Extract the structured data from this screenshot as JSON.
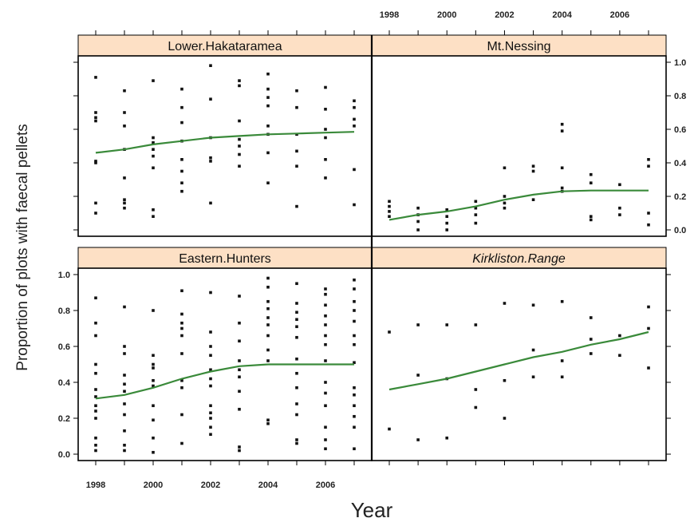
{
  "chart_data": {
    "type": "scatter",
    "xlabel": "Year",
    "ylabel": "Proportion of plots with faecal pellets",
    "x_ticks": [
      1998,
      2000,
      2002,
      2004,
      2006
    ],
    "y_ticks": [
      "0.0",
      "0.2",
      "0.4",
      "0.6",
      "0.8",
      "1.0"
    ],
    "xlim": [
      1998,
      2007
    ],
    "ylim": [
      0,
      1
    ],
    "colors": {
      "smooth": "#3a8a3a",
      "points": "#111111",
      "strip": "#fde0c5",
      "frame": "#000000"
    },
    "panels": [
      {
        "name": "Lower.Hakataramea",
        "italic": false,
        "points": [
          [
            1998,
            0.91
          ],
          [
            1998,
            0.7
          ],
          [
            1998,
            0.67
          ],
          [
            1998,
            0.65
          ],
          [
            1998,
            0.41
          ],
          [
            1998,
            0.4
          ],
          [
            1998,
            0.16
          ],
          [
            1998,
            0.1
          ],
          [
            1999,
            0.83
          ],
          [
            1999,
            0.7
          ],
          [
            1999,
            0.62
          ],
          [
            1999,
            0.48
          ],
          [
            1999,
            0.31
          ],
          [
            1999,
            0.18
          ],
          [
            1999,
            0.16
          ],
          [
            1999,
            0.13
          ],
          [
            2000,
            0.89
          ],
          [
            2000,
            0.55
          ],
          [
            2000,
            0.52
          ],
          [
            2000,
            0.48
          ],
          [
            2000,
            0.44
          ],
          [
            2000,
            0.37
          ],
          [
            2000,
            0.12
          ],
          [
            2000,
            0.08
          ],
          [
            2001,
            0.84
          ],
          [
            2001,
            0.73
          ],
          [
            2001,
            0.64
          ],
          [
            2001,
            0.53
          ],
          [
            2001,
            0.42
          ],
          [
            2001,
            0.35
          ],
          [
            2001,
            0.28
          ],
          [
            2001,
            0.23
          ],
          [
            2002,
            0.98
          ],
          [
            2002,
            0.78
          ],
          [
            2002,
            0.55
          ],
          [
            2002,
            0.43
          ],
          [
            2002,
            0.41
          ],
          [
            2002,
            0.16
          ],
          [
            2003,
            0.89
          ],
          [
            2003,
            0.86
          ],
          [
            2003,
            0.65
          ],
          [
            2003,
            0.54
          ],
          [
            2003,
            0.5
          ],
          [
            2003,
            0.45
          ],
          [
            2003,
            0.38
          ],
          [
            2004,
            0.93
          ],
          [
            2004,
            0.84
          ],
          [
            2004,
            0.79
          ],
          [
            2004,
            0.74
          ],
          [
            2004,
            0.62
          ],
          [
            2004,
            0.57
          ],
          [
            2004,
            0.46
          ],
          [
            2004,
            0.28
          ],
          [
            2005,
            0.83
          ],
          [
            2005,
            0.73
          ],
          [
            2005,
            0.57
          ],
          [
            2005,
            0.47
          ],
          [
            2005,
            0.38
          ],
          [
            2005,
            0.14
          ],
          [
            2006,
            0.85
          ],
          [
            2006,
            0.72
          ],
          [
            2006,
            0.6
          ],
          [
            2006,
            0.55
          ],
          [
            2006,
            0.42
          ],
          [
            2006,
            0.31
          ],
          [
            2007,
            0.77
          ],
          [
            2007,
            0.73
          ],
          [
            2007,
            0.66
          ],
          [
            2007,
            0.62
          ],
          [
            2007,
            0.36
          ],
          [
            2007,
            0.15
          ]
        ],
        "smooth": [
          [
            1998,
            0.46
          ],
          [
            1999,
            0.48
          ],
          [
            2000,
            0.51
          ],
          [
            2001,
            0.53
          ],
          [
            2002,
            0.55
          ],
          [
            2003,
            0.56
          ],
          [
            2004,
            0.57
          ],
          [
            2005,
            0.575
          ],
          [
            2006,
            0.58
          ],
          [
            2007,
            0.585
          ]
        ]
      },
      {
        "name": "Mt.Nessing",
        "italic": false,
        "points": [
          [
            1998,
            0.17
          ],
          [
            1998,
            0.14
          ],
          [
            1998,
            0.11
          ],
          [
            1998,
            0.08
          ],
          [
            1999,
            0.13
          ],
          [
            1999,
            0.09
          ],
          [
            1999,
            0.05
          ],
          [
            1999,
            0.0
          ],
          [
            2000,
            0.12
          ],
          [
            2000,
            0.08
          ],
          [
            2000,
            0.04
          ],
          [
            2000,
            0.0
          ],
          [
            2001,
            0.17
          ],
          [
            2001,
            0.13
          ],
          [
            2001,
            0.09
          ],
          [
            2001,
            0.04
          ],
          [
            2002,
            0.37
          ],
          [
            2002,
            0.2
          ],
          [
            2002,
            0.16
          ],
          [
            2002,
            0.13
          ],
          [
            2003,
            0.38
          ],
          [
            2003,
            0.35
          ],
          [
            2003,
            0.18
          ],
          [
            2004,
            0.63
          ],
          [
            2004,
            0.59
          ],
          [
            2004,
            0.37
          ],
          [
            2004,
            0.25
          ],
          [
            2004,
            0.23
          ],
          [
            2005,
            0.33
          ],
          [
            2005,
            0.28
          ],
          [
            2005,
            0.08
          ],
          [
            2005,
            0.06
          ],
          [
            2006,
            0.27
          ],
          [
            2006,
            0.13
          ],
          [
            2006,
            0.09
          ],
          [
            2007,
            0.42
          ],
          [
            2007,
            0.38
          ],
          [
            2007,
            0.1
          ],
          [
            2007,
            0.03
          ]
        ],
        "smooth": [
          [
            1998,
            0.06
          ],
          [
            1999,
            0.09
          ],
          [
            2000,
            0.11
          ],
          [
            2001,
            0.14
          ],
          [
            2002,
            0.18
          ],
          [
            2003,
            0.21
          ],
          [
            2004,
            0.23
          ],
          [
            2005,
            0.235
          ],
          [
            2006,
            0.235
          ],
          [
            2007,
            0.235
          ]
        ]
      },
      {
        "name": "Eastern.Hunters",
        "italic": false,
        "points": [
          [
            1998,
            0.87
          ],
          [
            1998,
            0.73
          ],
          [
            1998,
            0.66
          ],
          [
            1998,
            0.5
          ],
          [
            1998,
            0.45
          ],
          [
            1998,
            0.36
          ],
          [
            1998,
            0.32
          ],
          [
            1998,
            0.27
          ],
          [
            1998,
            0.24
          ],
          [
            1998,
            0.2
          ],
          [
            1998,
            0.09
          ],
          [
            1998,
            0.05
          ],
          [
            1998,
            0.02
          ],
          [
            1999,
            0.82
          ],
          [
            1999,
            0.6
          ],
          [
            1999,
            0.56
          ],
          [
            1999,
            0.44
          ],
          [
            1999,
            0.39
          ],
          [
            1999,
            0.35
          ],
          [
            1999,
            0.28
          ],
          [
            1999,
            0.22
          ],
          [
            1999,
            0.13
          ],
          [
            1999,
            0.05
          ],
          [
            1999,
            0.02
          ],
          [
            2000,
            0.8
          ],
          [
            2000,
            0.55
          ],
          [
            2000,
            0.5
          ],
          [
            2000,
            0.48
          ],
          [
            2000,
            0.41
          ],
          [
            2000,
            0.38
          ],
          [
            2000,
            0.27
          ],
          [
            2000,
            0.19
          ],
          [
            2000,
            0.09
          ],
          [
            2000,
            0.01
          ],
          [
            2001,
            0.91
          ],
          [
            2001,
            0.78
          ],
          [
            2001,
            0.73
          ],
          [
            2001,
            0.7
          ],
          [
            2001,
            0.66
          ],
          [
            2001,
            0.56
          ],
          [
            2001,
            0.41
          ],
          [
            2001,
            0.37
          ],
          [
            2001,
            0.22
          ],
          [
            2001,
            0.06
          ],
          [
            2002,
            0.9
          ],
          [
            2002,
            0.68
          ],
          [
            2002,
            0.6
          ],
          [
            2002,
            0.55
          ],
          [
            2002,
            0.47
          ],
          [
            2002,
            0.42
          ],
          [
            2002,
            0.38
          ],
          [
            2002,
            0.27
          ],
          [
            2002,
            0.23
          ],
          [
            2002,
            0.2
          ],
          [
            2002,
            0.15
          ],
          [
            2002,
            0.11
          ],
          [
            2003,
            0.88
          ],
          [
            2003,
            0.73
          ],
          [
            2003,
            0.63
          ],
          [
            2003,
            0.52
          ],
          [
            2003,
            0.47
          ],
          [
            2003,
            0.43
          ],
          [
            2003,
            0.35
          ],
          [
            2003,
            0.25
          ],
          [
            2003,
            0.04
          ],
          [
            2003,
            0.02
          ],
          [
            2004,
            0.98
          ],
          [
            2004,
            0.93
          ],
          [
            2004,
            0.85
          ],
          [
            2004,
            0.81
          ],
          [
            2004,
            0.76
          ],
          [
            2004,
            0.72
          ],
          [
            2004,
            0.66
          ],
          [
            2004,
            0.58
          ],
          [
            2004,
            0.52
          ],
          [
            2004,
            0.19
          ],
          [
            2004,
            0.17
          ],
          [
            2005,
            0.95
          ],
          [
            2005,
            0.84
          ],
          [
            2005,
            0.79
          ],
          [
            2005,
            0.75
          ],
          [
            2005,
            0.71
          ],
          [
            2005,
            0.65
          ],
          [
            2005,
            0.53
          ],
          [
            2005,
            0.45
          ],
          [
            2005,
            0.37
          ],
          [
            2005,
            0.28
          ],
          [
            2005,
            0.22
          ],
          [
            2005,
            0.08
          ],
          [
            2005,
            0.06
          ],
          [
            2006,
            0.92
          ],
          [
            2006,
            0.89
          ],
          [
            2006,
            0.83
          ],
          [
            2006,
            0.77
          ],
          [
            2006,
            0.72
          ],
          [
            2006,
            0.66
          ],
          [
            2006,
            0.61
          ],
          [
            2006,
            0.52
          ],
          [
            2006,
            0.4
          ],
          [
            2006,
            0.34
          ],
          [
            2006,
            0.27
          ],
          [
            2006,
            0.15
          ],
          [
            2006,
            0.08
          ],
          [
            2006,
            0.03
          ],
          [
            2007,
            0.97
          ],
          [
            2007,
            0.92
          ],
          [
            2007,
            0.85
          ],
          [
            2007,
            0.8
          ],
          [
            2007,
            0.74
          ],
          [
            2007,
            0.66
          ],
          [
            2007,
            0.61
          ],
          [
            2007,
            0.51
          ],
          [
            2007,
            0.37
          ],
          [
            2007,
            0.33
          ],
          [
            2007,
            0.27
          ],
          [
            2007,
            0.21
          ],
          [
            2007,
            0.15
          ],
          [
            2007,
            0.03
          ]
        ],
        "smooth": [
          [
            1998,
            0.31
          ],
          [
            1999,
            0.33
          ],
          [
            2000,
            0.37
          ],
          [
            2001,
            0.42
          ],
          [
            2002,
            0.46
          ],
          [
            2003,
            0.49
          ],
          [
            2004,
            0.5
          ],
          [
            2005,
            0.5
          ],
          [
            2006,
            0.5
          ],
          [
            2007,
            0.5
          ]
        ]
      },
      {
        "name": "Kirkliston.Range",
        "italic": true,
        "points": [
          [
            1998,
            0.68
          ],
          [
            1998,
            0.14
          ],
          [
            1999,
            0.72
          ],
          [
            1999,
            0.44
          ],
          [
            1999,
            0.08
          ],
          [
            2000,
            0.72
          ],
          [
            2000,
            0.42
          ],
          [
            2000,
            0.09
          ],
          [
            2001,
            0.72
          ],
          [
            2001,
            0.36
          ],
          [
            2001,
            0.26
          ],
          [
            2002,
            0.84
          ],
          [
            2002,
            0.41
          ],
          [
            2002,
            0.2
          ],
          [
            2003,
            0.83
          ],
          [
            2003,
            0.58
          ],
          [
            2003,
            0.43
          ],
          [
            2004,
            0.85
          ],
          [
            2004,
            0.52
          ],
          [
            2004,
            0.43
          ],
          [
            2005,
            0.76
          ],
          [
            2005,
            0.64
          ],
          [
            2005,
            0.56
          ],
          [
            2006,
            0.66
          ],
          [
            2006,
            0.55
          ],
          [
            2007,
            0.82
          ],
          [
            2007,
            0.7
          ],
          [
            2007,
            0.48
          ]
        ],
        "smooth": [
          [
            1998,
            0.36
          ],
          [
            1999,
            0.39
          ],
          [
            2000,
            0.42
          ],
          [
            2001,
            0.46
          ],
          [
            2002,
            0.5
          ],
          [
            2003,
            0.54
          ],
          [
            2004,
            0.57
          ],
          [
            2005,
            0.61
          ],
          [
            2006,
            0.64
          ],
          [
            2007,
            0.68
          ]
        ]
      }
    ]
  }
}
